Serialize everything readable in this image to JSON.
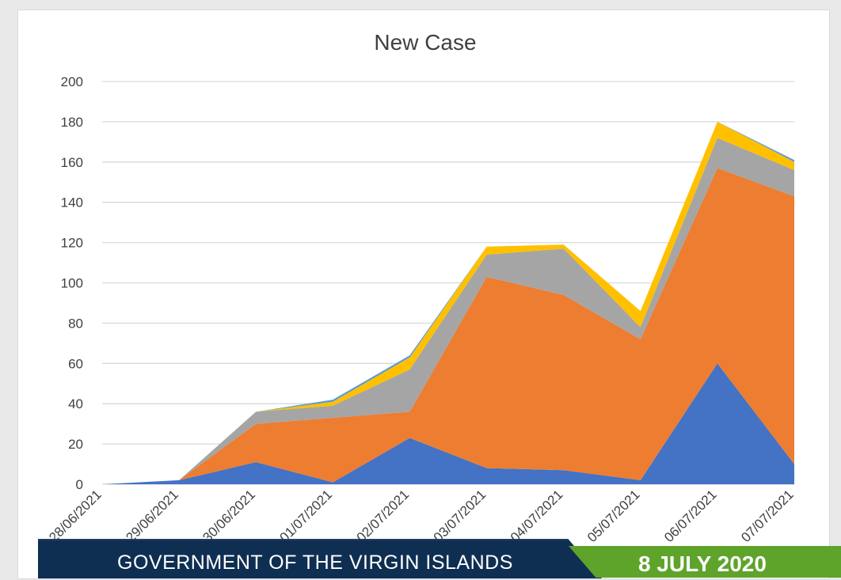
{
  "chart_data": {
    "type": "area",
    "stacked": true,
    "title": "New Case",
    "xlabel": "",
    "ylabel": "",
    "ylim": [
      0,
      200
    ],
    "yticks": [
      0,
      20,
      40,
      60,
      80,
      100,
      120,
      140,
      160,
      180,
      200
    ],
    "grid": true,
    "legend": "none",
    "categories": [
      "28/06/2021",
      "29/06/2021",
      "30/06/2021",
      "01/07/2021",
      "02/07/2021",
      "03/07/2021",
      "04/07/2021",
      "05/07/2021",
      "06/07/2021",
      "07/07/2021"
    ],
    "series": [
      {
        "color": "#4472c4",
        "values": [
          0,
          2,
          11,
          1,
          23,
          8,
          7,
          2,
          60,
          10
        ]
      },
      {
        "color": "#ed7d31",
        "values": [
          0,
          0,
          19,
          32,
          13,
          95,
          87,
          70,
          97,
          133
        ]
      },
      {
        "color": "#a5a5a5",
        "values": [
          0,
          0,
          6,
          6,
          21,
          11,
          23,
          6,
          15,
          13
        ]
      },
      {
        "color": "#ffc000",
        "values": [
          0,
          0,
          0,
          2,
          6,
          4,
          2,
          8,
          8,
          4
        ]
      },
      {
        "color": "#5b9bd5",
        "values": [
          0,
          0,
          0,
          1,
          1,
          0,
          0,
          0,
          0,
          1
        ]
      }
    ]
  },
  "banner": {
    "left_text": "GOVERNMENT OF THE VIRGIN ISLANDS",
    "right_text": "8 JULY 2020",
    "left_color": "#0f2f52",
    "right_color": "#5ea32a"
  }
}
